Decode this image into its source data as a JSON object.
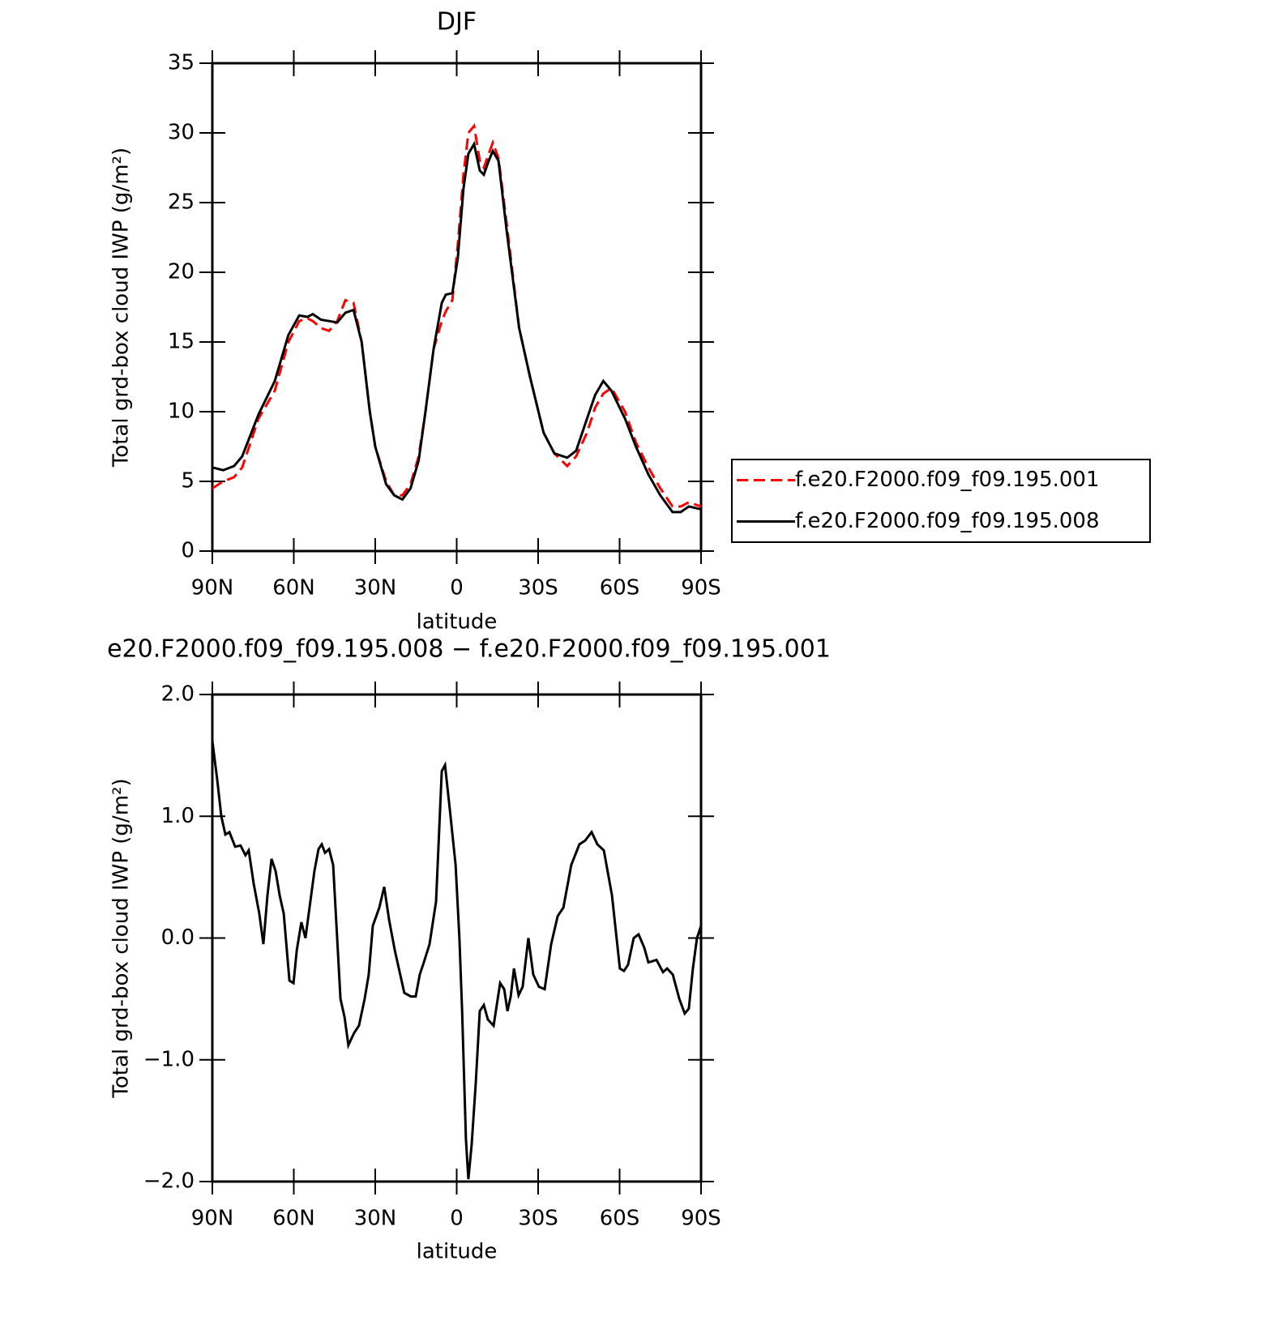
{
  "chart_data": [
    {
      "type": "line",
      "title": "DJF",
      "xlabel": "latitude",
      "ylabel": "Total grd-box cloud IWP (g/m²)",
      "xlim": [
        90,
        -90
      ],
      "xticks": [
        {
          "value": 90,
          "label": "90N"
        },
        {
          "value": 60,
          "label": "60N"
        },
        {
          "value": 30,
          "label": "30N"
        },
        0,
        {
          "value": -30,
          "label": "30S"
        },
        {
          "value": -60,
          "label": "60S"
        },
        {
          "value": -90,
          "label": "90S"
        }
      ],
      "ylim": [
        0,
        35
      ],
      "yticks": [
        0,
        5,
        10,
        15,
        20,
        25,
        30,
        35
      ],
      "legend": "right",
      "x": [
        90,
        86,
        82,
        79,
        73,
        67,
        62,
        58,
        55,
        53,
        50,
        47,
        44,
        41,
        38,
        35,
        32,
        30,
        26,
        23,
        20,
        17,
        14,
        11.5,
        8.5,
        5.5,
        4,
        1.6,
        -0.4,
        -2.5,
        -4.3,
        -6.4,
        -8.5,
        -10,
        -11.8,
        -13.3,
        -15.4,
        -18.4,
        -23,
        -27,
        -32,
        -36,
        -40.7,
        -44,
        -48,
        -51,
        -54,
        -57,
        -62,
        -66,
        -70.6,
        -75,
        -79.5,
        -82.5,
        -85.5,
        -90
      ],
      "series": [
        {
          "name": "f.e20.F2000.f09_f09.195.001",
          "color": "#ff0000",
          "dash": true,
          "values": [
            4.5,
            5.0,
            5.3,
            6.0,
            9.5,
            11.5,
            15.0,
            16.5,
            16.7,
            16.5,
            16.0,
            15.8,
            16.5,
            18.0,
            17.8,
            15.0,
            10.0,
            7.5,
            5.0,
            4.0,
            4.0,
            4.8,
            6.8,
            10.0,
            14.5,
            16.5,
            17.2,
            18.0,
            22.0,
            27.0,
            30.0,
            30.5,
            28.0,
            27.5,
            28.5,
            29.3,
            28.2,
            23.5,
            16.0,
            12.5,
            8.5,
            7.0,
            6.1,
            6.8,
            8.5,
            10.3,
            11.3,
            11.7,
            10.0,
            7.8,
            6.0,
            4.5,
            3.2,
            3.2,
            3.5,
            3.2
          ]
        },
        {
          "name": "f.e20.F2000.f09_f09.195.008",
          "color": "#000000",
          "dash": false,
          "values": [
            6.0,
            5.8,
            6.1,
            6.8,
            9.8,
            12.2,
            15.5,
            16.9,
            16.8,
            17.0,
            16.6,
            16.5,
            16.4,
            17.1,
            17.3,
            15.0,
            10.0,
            7.5,
            4.8,
            4.0,
            3.7,
            4.5,
            6.5,
            10.0,
            14.5,
            17.8,
            18.4,
            18.5,
            21.0,
            26.0,
            28.5,
            29.2,
            27.3,
            27.0,
            28.0,
            28.7,
            28.0,
            23.0,
            16.0,
            12.5,
            8.5,
            7.0,
            6.7,
            7.2,
            9.5,
            11.2,
            12.2,
            11.5,
            9.5,
            7.5,
            5.5,
            4.0,
            2.8,
            2.8,
            3.2,
            3.0
          ]
        }
      ]
    },
    {
      "type": "line",
      "title": "e20.F2000.f09_f09.195.008 − f.e20.F2000.f09_f09.195.001",
      "xlabel": "latitude",
      "ylabel": "Total grd-box cloud IWP (g/m²)",
      "xlim": [
        90,
        -90
      ],
      "xticks": [
        {
          "value": 90,
          "label": "90N"
        },
        {
          "value": 60,
          "label": "60N"
        },
        {
          "value": 30,
          "label": "30N"
        },
        0,
        {
          "value": -30,
          "label": "30S"
        },
        {
          "value": -60,
          "label": "60S"
        },
        {
          "value": -90,
          "label": "90S"
        }
      ],
      "ylim": [
        -2,
        2
      ],
      "yticks": [
        {
          "value": -2,
          "label": "−2.0"
        },
        {
          "value": -1,
          "label": "−1.0"
        },
        {
          "value": 0,
          "label": "0.0"
        },
        {
          "value": 1,
          "label": "1.0"
        },
        {
          "value": 2,
          "label": "2.0"
        }
      ],
      "x": [
        90,
        88.2,
        86.7,
        85.2,
        83.7,
        81.6,
        79.6,
        77.8,
        76.6,
        74.8,
        72.7,
        71.2,
        69.7,
        68.2,
        66.7,
        65.2,
        63.7,
        61.6,
        60.1,
        58.9,
        57.2,
        55.7,
        54.2,
        52.4,
        50.9,
        49.7,
        48.5,
        47.0,
        45.5,
        42.8,
        41.3,
        39.9,
        37.8,
        36.0,
        33.9,
        32.4,
        30.9,
        28.5,
        26.7,
        24.9,
        22.8,
        21.3,
        19.3,
        16.9,
        15.1,
        13.6,
        12.1,
        10.0,
        7.6,
        5.5,
        4.3,
        2.5,
        0.4,
        -1.0,
        -2.0,
        -3.4,
        -4.3,
        -5.5,
        -7.0,
        -8.5,
        -10.0,
        -11.5,
        -13.6,
        -16.0,
        -17.5,
        -18.7,
        -19.9,
        -21.1,
        -22.8,
        -24.3,
        -26.4,
        -28.2,
        -30.3,
        -32.4,
        -34.8,
        -37.2,
        -39.3,
        -42.2,
        -45.2,
        -47.3,
        -49.7,
        -51.8,
        -54.2,
        -57.2,
        -60.1,
        -61.6,
        -63.1,
        -65.2,
        -67.0,
        -69.1,
        -70.6,
        -73.6,
        -76.0,
        -77.5,
        -79.6,
        -82.0,
        -84.0,
        -85.5,
        -87.0,
        -88.5,
        -90
      ],
      "color": "#000000",
      "values": [
        1.62,
        1.3,
        1.0,
        0.85,
        0.87,
        0.75,
        0.76,
        0.68,
        0.72,
        0.45,
        0.2,
        -0.05,
        0.35,
        0.65,
        0.55,
        0.35,
        0.2,
        -0.35,
        -0.37,
        -0.1,
        0.13,
        0.0,
        0.25,
        0.55,
        0.73,
        0.77,
        0.7,
        0.73,
        0.6,
        -0.5,
        -0.65,
        -0.88,
        -0.78,
        -0.72,
        -0.5,
        -0.3,
        0.1,
        0.25,
        0.42,
        0.15,
        -0.1,
        -0.25,
        -0.45,
        -0.48,
        -0.48,
        -0.3,
        -0.2,
        -0.05,
        0.3,
        1.37,
        1.42,
        1.05,
        0.6,
        0.0,
        -0.6,
        -1.65,
        -1.98,
        -1.7,
        -1.2,
        -0.6,
        -0.55,
        -0.67,
        -0.72,
        -0.37,
        -0.42,
        -0.6,
        -0.48,
        -0.25,
        -0.47,
        -0.4,
        0.0,
        -0.3,
        -0.4,
        -0.42,
        -0.05,
        0.18,
        0.25,
        0.6,
        0.77,
        0.8,
        0.87,
        0.77,
        0.72,
        0.35,
        -0.25,
        -0.27,
        -0.22,
        0.0,
        0.03,
        -0.08,
        -0.2,
        -0.18,
        -0.28,
        -0.25,
        -0.3,
        -0.5,
        -0.62,
        -0.58,
        -0.25,
        0.0,
        0.1
      ]
    }
  ]
}
